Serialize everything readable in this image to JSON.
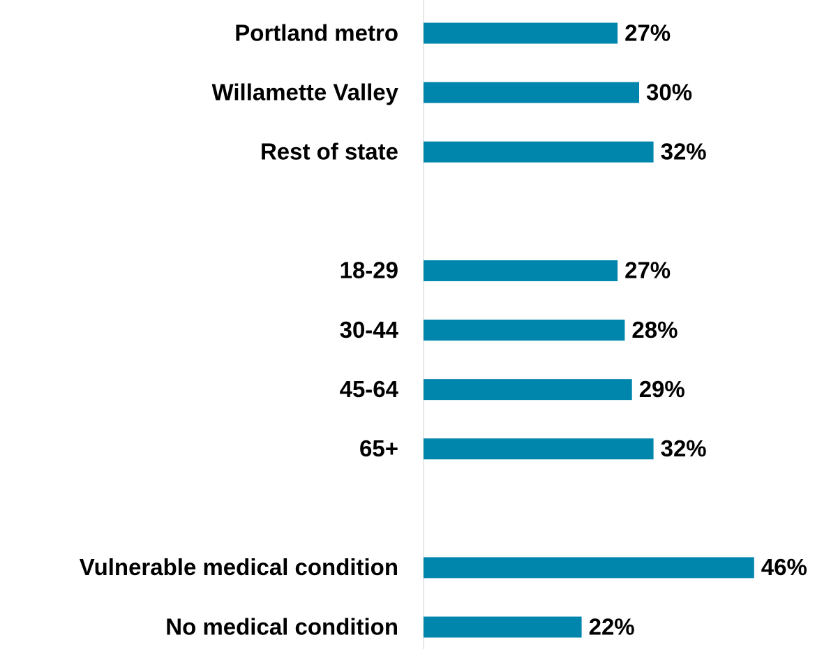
{
  "chart_data": {
    "type": "hbar",
    "categories": [
      "Portland metro",
      "Willamette Valley",
      "Rest of state",
      null,
      "18-29",
      "30-44",
      "45-64",
      "65+",
      null,
      "Vulnerable medical condition",
      "No medical condition"
    ],
    "values": [
      27,
      30,
      32,
      null,
      27,
      28,
      29,
      32,
      null,
      46,
      22
    ],
    "value_labels": [
      "27%",
      "30%",
      "32%",
      null,
      "27%",
      "28%",
      "29%",
      "32%",
      null,
      "46%",
      "22%"
    ],
    "color": "#0085ad",
    "xlim": [
      0,
      50
    ]
  }
}
